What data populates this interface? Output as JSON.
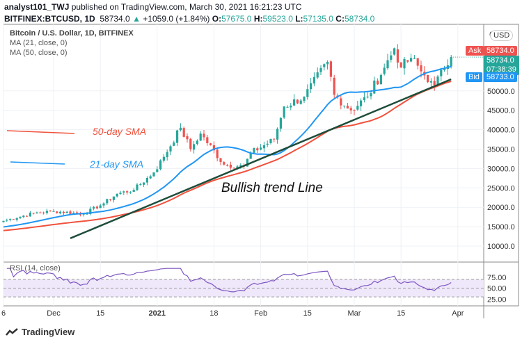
{
  "header": {
    "author": "analyst101_TWJ",
    "published": "published on TradingView.com, March 30, 2021 16:21:23 UTC",
    "symbol": "BITFINEX:BTCUSD, 1D",
    "last": "58734.0",
    "change": "+1059.0 (+1.84%)",
    "o_label": "O:",
    "o": "57675.0",
    "h_label": "H:",
    "h": "59523.0",
    "l_label": "L:",
    "l": "57135.0",
    "c_label": "C:",
    "c": "58734.0"
  },
  "legend": {
    "title": "Bitcoin / U.S. Dollar, 1D, BITFINEX",
    "ma21": "MA (21, close, 0)",
    "ma50": "MA (50, close, 0)",
    "rsi": "RSI (14, close)"
  },
  "price_tags": {
    "currency": "USD",
    "ask_label": "Ask",
    "ask": "58734.0",
    "last": "58734.0",
    "countdown": "07:38:39",
    "bid_label": "Bid",
    "bid": "58733.0"
  },
  "footer": {
    "brand": "TradingView"
  },
  "colors": {
    "up": "#26a69a",
    "down": "#ef5350",
    "ma21": "#2196f3",
    "ma50": "#f0513c",
    "trend": "#1e4d3a",
    "rsi": "#7e57c2"
  },
  "chart_data": {
    "type": "candlestick",
    "y_ticks": [
      10000,
      15000,
      20000,
      25000,
      30000,
      35000,
      40000,
      45000,
      50000
    ],
    "y_tick_labels": [
      "10000.0",
      "15000.0",
      "20000.0",
      "25000.0",
      "30000.0",
      "35000.0",
      "40000.0",
      "45000.0",
      "50000.0"
    ],
    "top_label": "6",
    "x_ticks": [
      {
        "day": 0,
        "label": "6"
      },
      {
        "day": 15,
        "label": "Dec"
      },
      {
        "day": 29,
        "label": "15"
      },
      {
        "day": 46,
        "label": "2021"
      },
      {
        "day": 63,
        "label": "18"
      },
      {
        "day": 77,
        "label": "Feb"
      },
      {
        "day": 91,
        "label": "15"
      },
      {
        "day": 105,
        "label": "Mar"
      },
      {
        "day": 119,
        "label": "15"
      },
      {
        "day": 136,
        "label": "Apr"
      }
    ],
    "close_anchors": [
      [
        0,
        16500
      ],
      [
        9,
        18500
      ],
      [
        15,
        19000
      ],
      [
        24,
        18300
      ],
      [
        30,
        21000
      ],
      [
        34,
        23500
      ],
      [
        39,
        24500
      ],
      [
        45,
        29000
      ],
      [
        48,
        33000
      ],
      [
        53,
        40500
      ],
      [
        56,
        35000
      ],
      [
        59,
        39000
      ],
      [
        66,
        31000
      ],
      [
        72,
        30500
      ],
      [
        74,
        34000
      ],
      [
        81,
        37500
      ],
      [
        84,
        46000
      ],
      [
        90,
        48500
      ],
      [
        97,
        57500
      ],
      [
        99,
        49000
      ],
      [
        104,
        45000
      ],
      [
        109,
        48500
      ],
      [
        114,
        56000
      ],
      [
        117,
        61000
      ],
      [
        119,
        56000
      ],
      [
        122,
        58500
      ],
      [
        126,
        54000
      ],
      [
        128,
        52500
      ],
      [
        129,
        51500
      ],
      [
        132,
        55800
      ],
      [
        134,
        58734
      ]
    ],
    "annotations": {
      "sma50": "50-day SMA",
      "sma21": "21-day SMA",
      "trend": "Bullish trend Line"
    },
    "trendline": [
      [
        20,
        12000
      ],
      [
        134,
        53000
      ]
    ],
    "rsi_ticks": [
      75,
      50,
      25
    ],
    "rsi_tick_labels": [
      "75.00",
      "50.00",
      "25.00"
    ],
    "rsi_band": [
      30,
      70
    ]
  }
}
